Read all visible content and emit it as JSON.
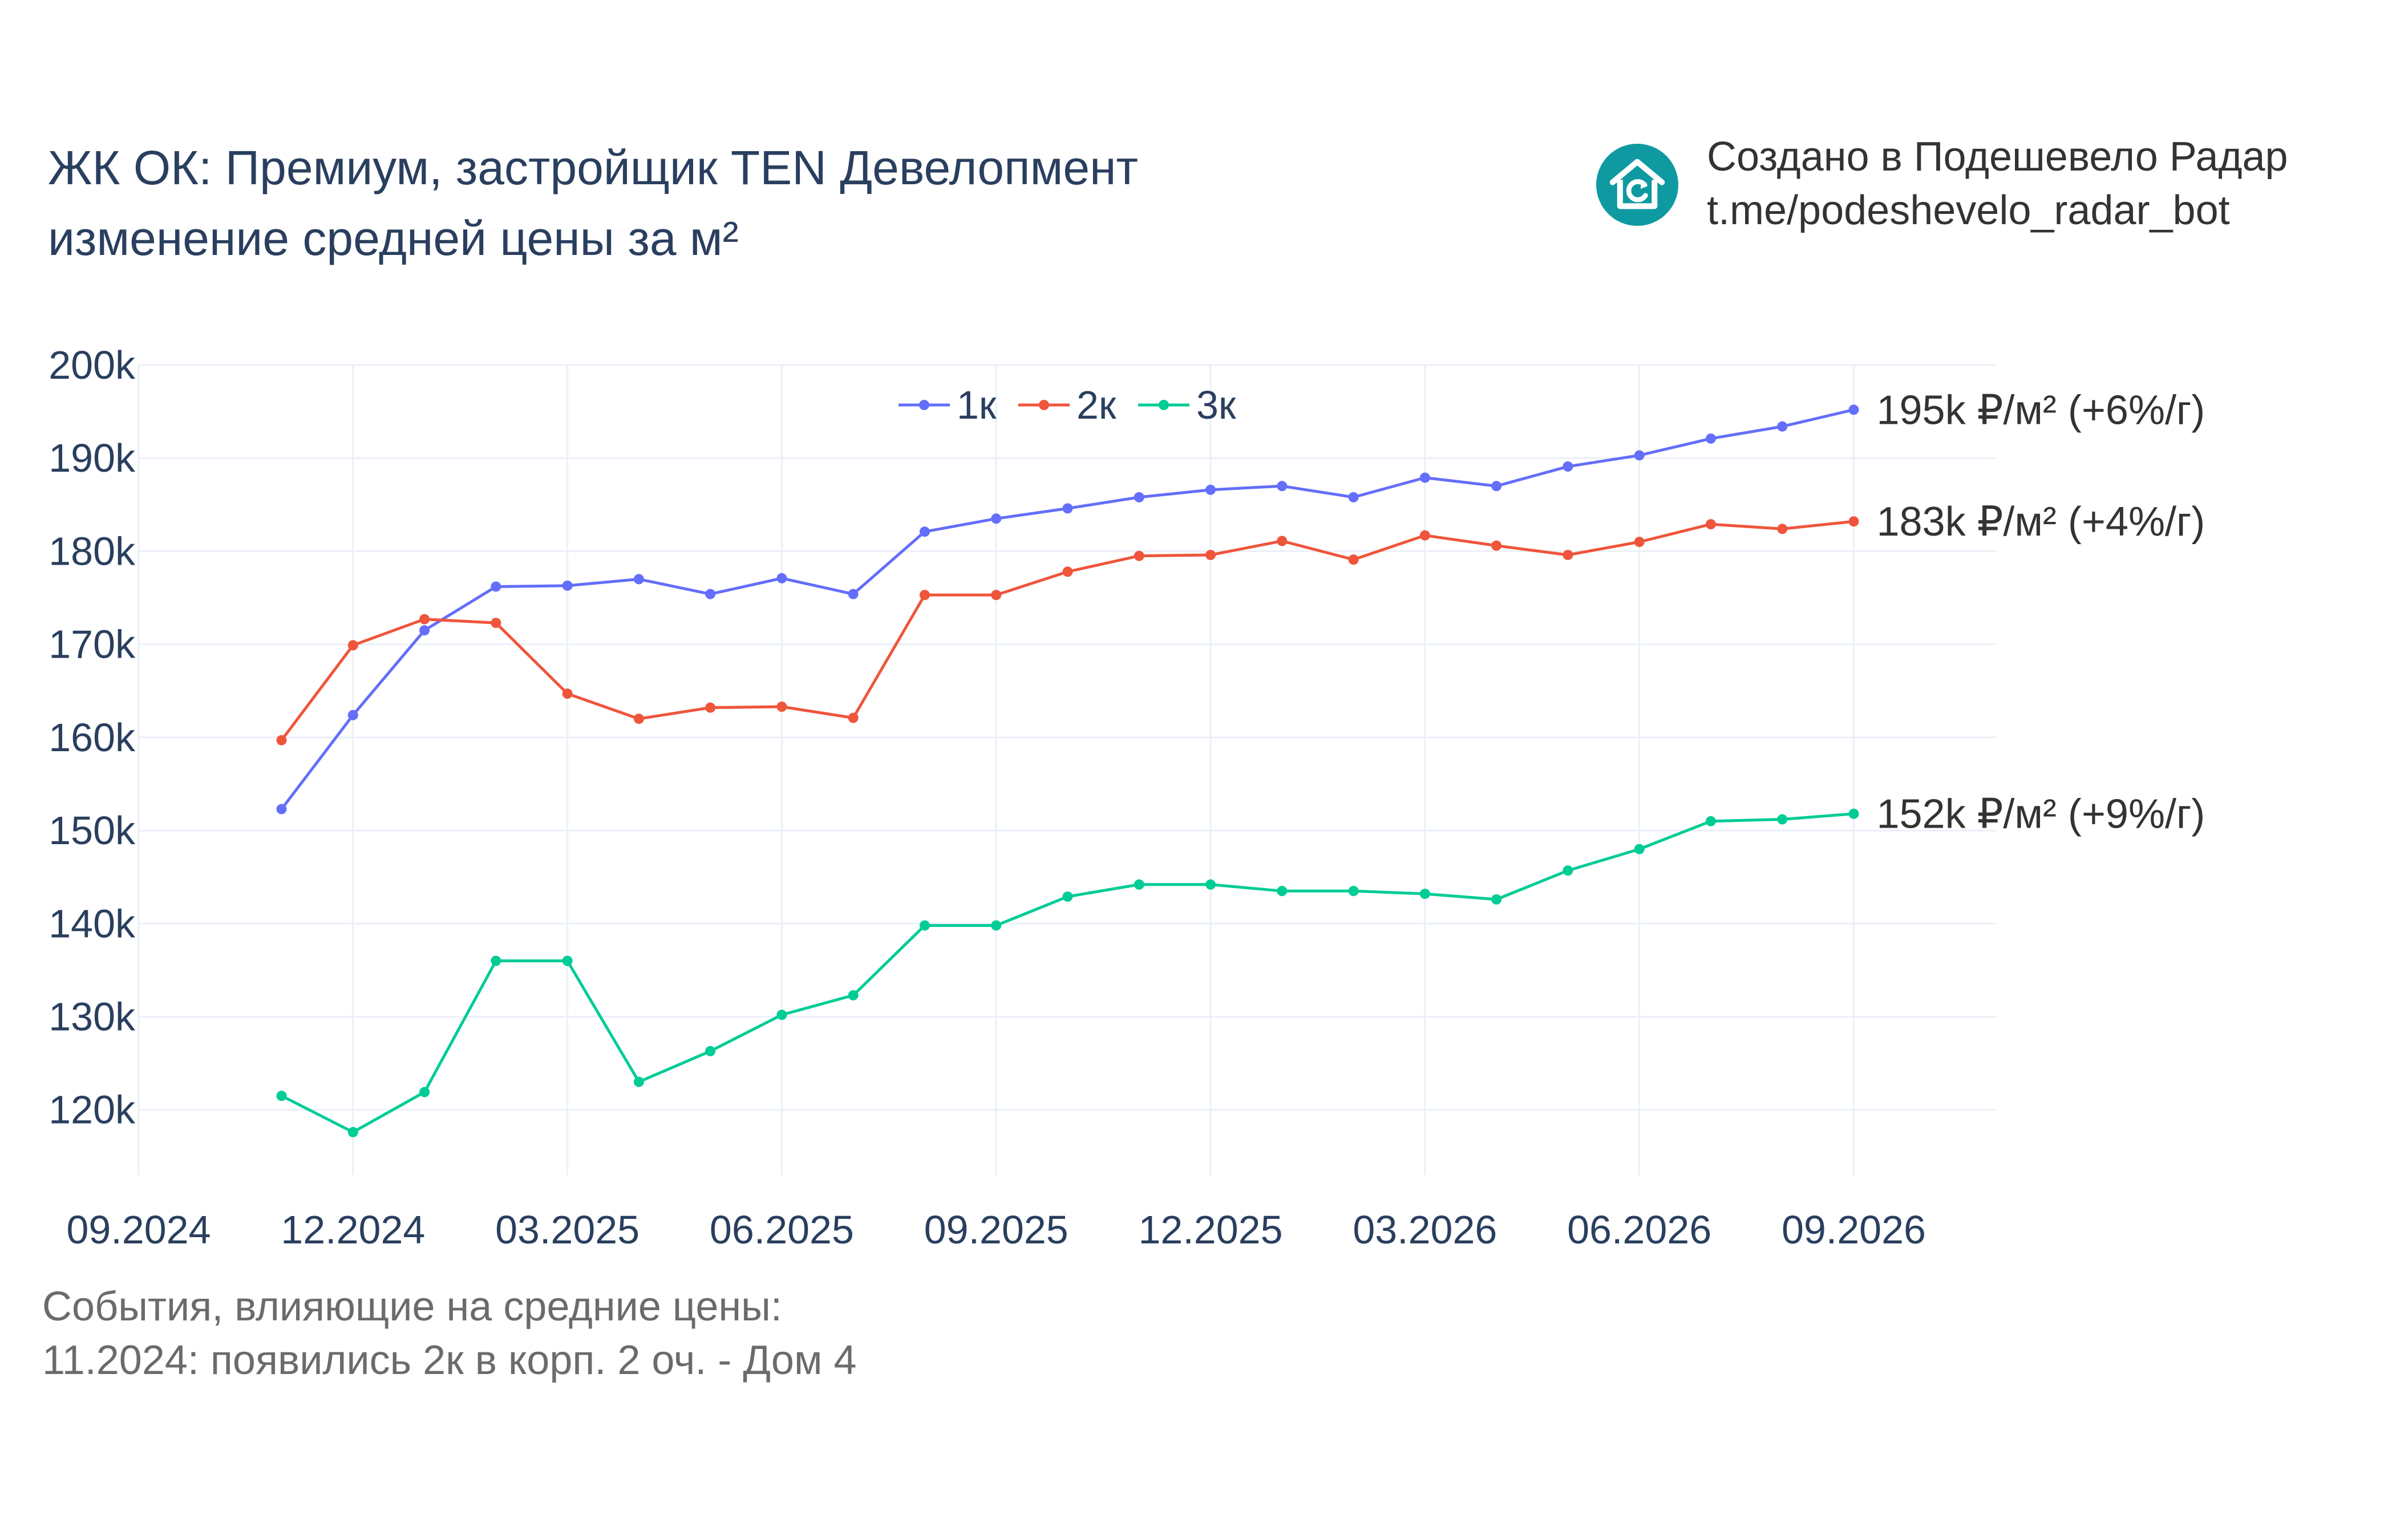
{
  "title": {
    "line1": "ЖК ОК: Премиум, застройщик TEN Девелопмент",
    "line2": "изменение средней цены за м²"
  },
  "brand": {
    "line1": "Создано в Подешевело Радар",
    "line2": "t.me/podeshevelo_radar_bot",
    "icon": "house-refresh-icon",
    "color": "#0e9aa0"
  },
  "events": {
    "heading": "События, влияющие на средние цены:",
    "items": [
      "11.2024: появились 2к в корп. 2 оч. - Дом 4"
    ]
  },
  "chart_data": {
    "type": "line",
    "x": [
      "2024-11",
      "2024-12",
      "2025-01",
      "2025-02",
      "2025-03",
      "2025-04",
      "2025-05",
      "2025-06",
      "2025-07",
      "2025-08",
      "2025-09",
      "2025-10",
      "2025-11",
      "2025-12",
      "2026-01",
      "2026-02",
      "2026-03",
      "2026-04",
      "2026-05",
      "2026-06",
      "2026-07",
      "2026-08",
      "2026-09"
    ],
    "x_ticks": [
      {
        "date": "2024-09",
        "label": "09.2024"
      },
      {
        "date": "2024-12",
        "label": "12.2024"
      },
      {
        "date": "2025-03",
        "label": "03.2025"
      },
      {
        "date": "2025-06",
        "label": "06.2025"
      },
      {
        "date": "2025-09",
        "label": "09.2025"
      },
      {
        "date": "2025-12",
        "label": "12.2025"
      },
      {
        "date": "2026-03",
        "label": "03.2026"
      },
      {
        "date": "2026-06",
        "label": "06.2026"
      },
      {
        "date": "2026-09",
        "label": "09.2026"
      }
    ],
    "xlim": [
      "2024-09",
      "2026-11"
    ],
    "y_ticks": [
      {
        "value": 120000,
        "label": "120k"
      },
      {
        "value": 130000,
        "label": "130k"
      },
      {
        "value": 140000,
        "label": "140k"
      },
      {
        "value": 150000,
        "label": "150k"
      },
      {
        "value": 160000,
        "label": "160k"
      },
      {
        "value": 170000,
        "label": "170k"
      },
      {
        "value": 180000,
        "label": "180k"
      },
      {
        "value": 190000,
        "label": "190k"
      },
      {
        "value": 200000,
        "label": "200k"
      }
    ],
    "ylim": [
      113000,
      200000
    ],
    "grid": true,
    "legend_position": "top-center",
    "series": [
      {
        "name": "1к",
        "color": "#636efa",
        "end_label": "195k ₽/м² (+6%/г)",
        "values": [
          152300,
          162400,
          171500,
          176200,
          176300,
          177000,
          175400,
          177100,
          175400,
          182100,
          183500,
          184600,
          185800,
          186600,
          187000,
          185800,
          187900,
          187000,
          189100,
          190300,
          192100,
          193400,
          195200
        ]
      },
      {
        "name": "2к",
        "color": "#ef553b",
        "end_label": "183k ₽/м² (+4%/г)",
        "values": [
          159700,
          169900,
          172700,
          172300,
          164700,
          162000,
          163200,
          163300,
          162100,
          175300,
          175300,
          177800,
          179500,
          179600,
          181100,
          179100,
          181700,
          180600,
          179600,
          181000,
          182900,
          182400,
          183200
        ]
      },
      {
        "name": "3к",
        "color": "#00cc96",
        "end_label": "152k ₽/м² (+9%/г)",
        "values": [
          121500,
          117600,
          121900,
          136000,
          136000,
          123000,
          126300,
          130200,
          132300,
          139800,
          139800,
          142900,
          144200,
          144200,
          143500,
          143500,
          143200,
          142600,
          145700,
          148000,
          151000,
          151200,
          151800
        ]
      }
    ]
  }
}
